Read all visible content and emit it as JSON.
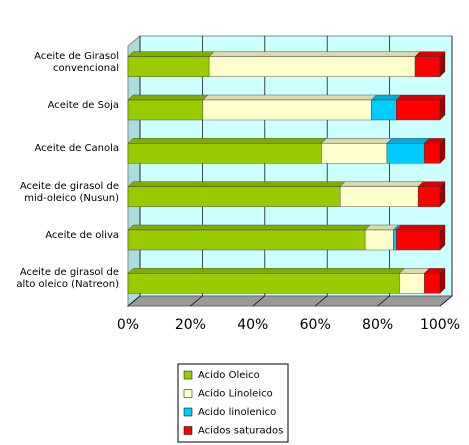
{
  "chart_data": {
    "type": "stacked-bar-horizontal",
    "categories": [
      "Aceite de Girasol convencional",
      "Aceite de Soja",
      "Aceite de Canola",
      "Aceite de girasol de mid-oleico (Nusun)",
      "Aceite de oliva",
      "Aceite de girasol de alto oleico (Natreon)"
    ],
    "series": [
      {
        "name": "Acido Oleico",
        "color": "#99cc00",
        "values": [
          26,
          24,
          62,
          68,
          76,
          87
        ]
      },
      {
        "name": "Acido Linoleico",
        "color": "#ffffcc",
        "values": [
          66,
          54,
          21,
          25,
          9,
          8
        ]
      },
      {
        "name": "Acido linolenico",
        "color": "#00ccff",
        "values": [
          0,
          8,
          12,
          0,
          1,
          0
        ]
      },
      {
        "name": "Acidos saturados",
        "color": "#ff0000",
        "values": [
          8,
          14,
          5,
          7,
          14,
          5
        ]
      }
    ],
    "xlim": [
      0,
      100
    ],
    "xticks": [
      {
        "value": 0,
        "label": "0%"
      },
      {
        "value": 20,
        "label": "20%"
      },
      {
        "value": 40,
        "label": "40%"
      },
      {
        "value": 60,
        "label": "60%"
      },
      {
        "value": 80,
        "label": "80%"
      },
      {
        "value": 100,
        "label": "100%"
      }
    ],
    "grid": true,
    "legend": "bottom"
  }
}
